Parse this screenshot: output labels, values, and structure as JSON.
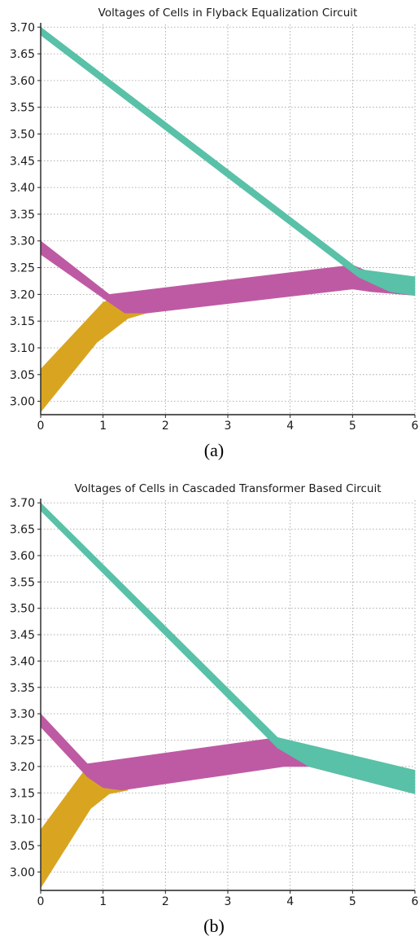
{
  "chart_data": [
    {
      "type": "area",
      "title": "Voltages of Cells in Flyback Equalization Circuit",
      "caption": "(a)",
      "xlim": [
        0,
        6
      ],
      "ylim": [
        2.975,
        3.705
      ],
      "x_ticks": [
        "0",
        "1",
        "2",
        "3",
        "4",
        "5",
        "6"
      ],
      "y_ticks": [
        "3.70",
        "3.65",
        "3.60",
        "3.55",
        "3.50",
        "3.45",
        "3.40",
        "3.35",
        "3.30",
        "3.25",
        "3.20",
        "3.15",
        "3.10",
        "3.05",
        "3.00"
      ],
      "grid": true,
      "series": [
        {
          "color": "#d9a521",
          "upper": [
            [
              0,
              3.06
            ],
            [
              1.0,
              3.185
            ],
            [
              1.3,
              3.2
            ]
          ],
          "lower": [
            [
              0,
              2.98
            ],
            [
              0.9,
              3.11
            ],
            [
              1.4,
              3.155
            ],
            [
              1.7,
              3.165
            ]
          ]
        },
        {
          "color": "#be5aa3",
          "upper": [
            [
              0,
              3.3
            ],
            [
              1.1,
              3.2
            ],
            [
              5.0,
              3.255
            ],
            [
              5.5,
              3.23
            ]
          ],
          "lower": [
            [
              0,
              3.275
            ],
            [
              1.1,
              3.185
            ],
            [
              1.35,
              3.165
            ],
            [
              1.7,
              3.165
            ],
            [
              5.0,
              3.21
            ],
            [
              5.3,
              3.205
            ],
            [
              6,
              3.198
            ]
          ]
        },
        {
          "color": "#59c1a7",
          "upper": [
            [
              0,
              3.7
            ],
            [
              5.1,
              3.247
            ],
            [
              6,
              3.233
            ]
          ],
          "lower": [
            [
              0,
              3.685
            ],
            [
              5.1,
              3.232
            ],
            [
              5.6,
              3.205
            ],
            [
              6,
              3.198
            ]
          ]
        }
      ]
    },
    {
      "type": "area",
      "title": "Voltages of Cells in Cascaded Transformer Based Circuit",
      "caption": "(b)",
      "xlim": [
        0,
        6
      ],
      "ylim": [
        2.965,
        3.705
      ],
      "x_ticks": [
        "0",
        "1",
        "2",
        "3",
        "4",
        "5",
        "6"
      ],
      "y_ticks": [
        "3.70",
        "3.65",
        "3.60",
        "3.55",
        "3.50",
        "3.45",
        "3.40",
        "3.35",
        "3.30",
        "3.25",
        "3.20",
        "3.15",
        "3.10",
        "3.05",
        "3.00"
      ],
      "grid": true,
      "series": [
        {
          "color": "#d9a521",
          "upper": [
            [
              0,
              3.08
            ],
            [
              0.75,
              3.2
            ],
            [
              0.9,
              3.205
            ]
          ],
          "lower": [
            [
              0,
              2.97
            ],
            [
              0.8,
              3.12
            ],
            [
              1.1,
              3.148
            ],
            [
              1.4,
              3.155
            ]
          ]
        },
        {
          "color": "#be5aa3",
          "upper": [
            [
              0,
              3.3
            ],
            [
              0.75,
              3.205
            ],
            [
              3.8,
              3.255
            ],
            [
              4.3,
              3.225
            ]
          ],
          "lower": [
            [
              0,
              3.275
            ],
            [
              0.75,
              3.18
            ],
            [
              1.0,
              3.16
            ],
            [
              1.3,
              3.155
            ],
            [
              3.9,
              3.2
            ],
            [
              4.3,
              3.2
            ],
            [
              6,
              3.148
            ]
          ]
        },
        {
          "color": "#59c1a7",
          "upper": [
            [
              0,
              3.7
            ],
            [
              3.8,
              3.255
            ],
            [
              6,
              3.193
            ]
          ],
          "lower": [
            [
              0,
              3.685
            ],
            [
              3.8,
              3.235
            ],
            [
              4.3,
              3.2
            ],
            [
              6,
              3.148
            ]
          ]
        }
      ]
    }
  ]
}
